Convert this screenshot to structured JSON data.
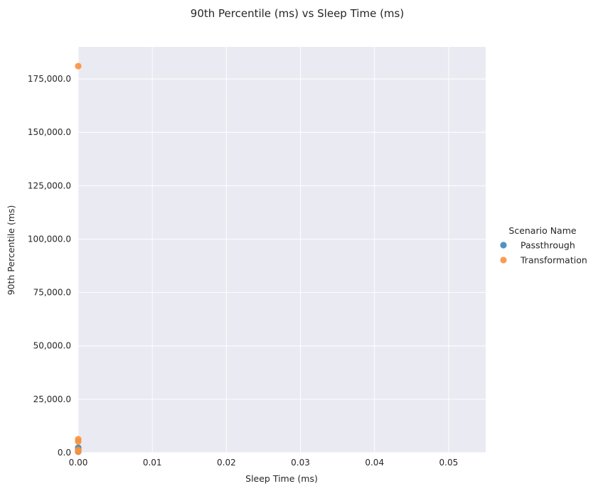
{
  "chart_data": {
    "type": "scatter",
    "title": "90th Percentile (ms) vs Sleep Time (ms)",
    "xlabel": "Sleep Time (ms)",
    "ylabel": "90th Percentile (ms)",
    "xlim": [
      0,
      0.055
    ],
    "ylim": [
      0,
      190000
    ],
    "xticks": [
      0.0,
      0.01,
      0.02,
      0.03,
      0.04,
      0.05
    ],
    "xtick_labels": [
      "0.00",
      "0.01",
      "0.02",
      "0.03",
      "0.04",
      "0.05"
    ],
    "yticks": [
      0,
      25000,
      50000,
      75000,
      100000,
      125000,
      150000,
      175000
    ],
    "ytick_labels": [
      "0.0",
      "25,000.0",
      "50,000.0",
      "75,000.0",
      "100,000.0",
      "125,000.0",
      "150,000.0",
      "175,000.0"
    ],
    "grid": true,
    "plot_background": "#eaeaf2",
    "grid_color": "#ffffff",
    "legend": {
      "title": "Scenario Name",
      "placement": "right"
    },
    "series": [
      {
        "name": "Passthrough",
        "color": "#3b87bd",
        "points": [
          {
            "x": 0,
            "y": 400
          },
          {
            "x": 0,
            "y": 900
          },
          {
            "x": 0,
            "y": 1500
          },
          {
            "x": 0,
            "y": 2300
          }
        ]
      },
      {
        "name": "Transformation",
        "color": "#f9913c",
        "points": [
          {
            "x": 0,
            "y": 181000
          },
          {
            "x": 0,
            "y": 6300
          },
          {
            "x": 0,
            "y": 5200
          },
          {
            "x": 0,
            "y": 1300
          },
          {
            "x": 0,
            "y": 500
          }
        ]
      }
    ]
  }
}
